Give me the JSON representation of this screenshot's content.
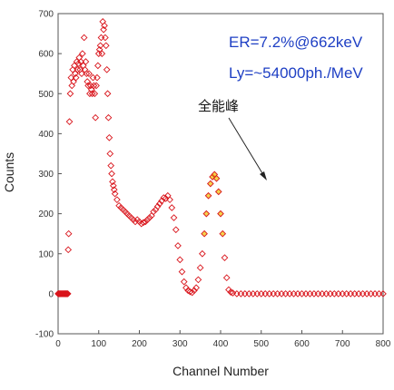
{
  "chart_data": {
    "type": "scatter",
    "title": "",
    "xlabel": "Channel Number",
    "ylabel": "Counts",
    "xlim": [
      0,
      800
    ],
    "ylim": [
      -100,
      700
    ],
    "x_ticks": [
      0,
      100,
      200,
      300,
      400,
      500,
      600,
      700,
      800
    ],
    "y_ticks": [
      -100,
      0,
      100,
      200,
      300,
      400,
      500,
      600,
      700
    ],
    "grid": false,
    "legend": "none",
    "annotations": {
      "er": "ER=7.2%@662keV",
      "ly": "Ly=~54000ph./MeV",
      "peak": "全能峰"
    },
    "colors": {
      "marker_edge": "#d9141b",
      "marker_fill": "#f0c000",
      "annotation_text": "#1e3fc4"
    },
    "series": [
      {
        "marker": "diamond-open",
        "points": [
          [
            0,
            0
          ],
          [
            2,
            0
          ],
          [
            4,
            0
          ],
          [
            6,
            0
          ],
          [
            8,
            0
          ],
          [
            10,
            0
          ],
          [
            12,
            0
          ],
          [
            14,
            0
          ],
          [
            16,
            0
          ],
          [
            18,
            0
          ],
          [
            20,
            0
          ],
          [
            22,
            0
          ],
          [
            24,
            0
          ],
          [
            25,
            110
          ],
          [
            26,
            150
          ],
          [
            28,
            430
          ],
          [
            30,
            500
          ],
          [
            32,
            540
          ],
          [
            34,
            520
          ],
          [
            36,
            560
          ],
          [
            38,
            530
          ],
          [
            40,
            570
          ],
          [
            42,
            550
          ],
          [
            44,
            540
          ],
          [
            46,
            580
          ],
          [
            48,
            560
          ],
          [
            50,
            575
          ],
          [
            52,
            590
          ],
          [
            54,
            560
          ],
          [
            56,
            580
          ],
          [
            58,
            550
          ],
          [
            60,
            600
          ],
          [
            62,
            570
          ],
          [
            64,
            640
          ],
          [
            66,
            560
          ],
          [
            68,
            580
          ],
          [
            70,
            550
          ],
          [
            72,
            530
          ],
          [
            74,
            520
          ],
          [
            76,
            550
          ],
          [
            78,
            500
          ],
          [
            80,
            520
          ],
          [
            82,
            510
          ],
          [
            84,
            500
          ],
          [
            86,
            540
          ],
          [
            88,
            520
          ],
          [
            90,
            500
          ],
          [
            92,
            440
          ],
          [
            94,
            520
          ],
          [
            96,
            540
          ],
          [
            98,
            570
          ],
          [
            100,
            600
          ],
          [
            102,
            610
          ],
          [
            104,
            620
          ],
          [
            106,
            640
          ],
          [
            108,
            600
          ],
          [
            110,
            680
          ],
          [
            112,
            660
          ],
          [
            114,
            670
          ],
          [
            116,
            640
          ],
          [
            118,
            620
          ],
          [
            120,
            560
          ],
          [
            122,
            500
          ],
          [
            124,
            440
          ],
          [
            126,
            390
          ],
          [
            128,
            350
          ],
          [
            130,
            320
          ],
          [
            132,
            300
          ],
          [
            134,
            280
          ],
          [
            136,
            270
          ],
          [
            138,
            260
          ],
          [
            140,
            250
          ],
          [
            145,
            235
          ],
          [
            150,
            220
          ],
          [
            155,
            215
          ],
          [
            160,
            210
          ],
          [
            165,
            205
          ],
          [
            170,
            200
          ],
          [
            175,
            195
          ],
          [
            180,
            190
          ],
          [
            185,
            185
          ],
          [
            190,
            180
          ],
          [
            195,
            185
          ],
          [
            200,
            180
          ],
          [
            205,
            175
          ],
          [
            210,
            178
          ],
          [
            215,
            180
          ],
          [
            220,
            185
          ],
          [
            225,
            190
          ],
          [
            230,
            195
          ],
          [
            235,
            205
          ],
          [
            240,
            210
          ],
          [
            245,
            218
          ],
          [
            250,
            225
          ],
          [
            255,
            232
          ],
          [
            260,
            240
          ],
          [
            265,
            238
          ],
          [
            270,
            245
          ],
          [
            275,
            235
          ],
          [
            280,
            215
          ],
          [
            285,
            190
          ],
          [
            290,
            160
          ],
          [
            295,
            120
          ],
          [
            300,
            85
          ],
          [
            305,
            55
          ],
          [
            310,
            30
          ],
          [
            315,
            15
          ],
          [
            320,
            8
          ],
          [
            325,
            5
          ],
          [
            330,
            3
          ],
          [
            335,
            8
          ],
          [
            340,
            15
          ],
          [
            345,
            35
          ],
          [
            350,
            65
          ],
          [
            355,
            100
          ],
          [
            360,
            150
          ],
          [
            365,
            200
          ],
          [
            370,
            245
          ],
          [
            375,
            275
          ],
          [
            380,
            292
          ],
          [
            385,
            298
          ],
          [
            390,
            288
          ],
          [
            395,
            255
          ],
          [
            400,
            200
          ],
          [
            405,
            150
          ],
          [
            410,
            90
          ],
          [
            415,
            40
          ],
          [
            420,
            10
          ],
          [
            425,
            4
          ],
          [
            430,
            2
          ],
          [
            440,
            0
          ],
          [
            450,
            0
          ],
          [
            460,
            0
          ],
          [
            470,
            0
          ],
          [
            480,
            0
          ],
          [
            490,
            0
          ],
          [
            500,
            0
          ],
          [
            510,
            0
          ],
          [
            520,
            0
          ],
          [
            530,
            0
          ],
          [
            540,
            0
          ],
          [
            550,
            0
          ],
          [
            560,
            0
          ],
          [
            570,
            0
          ],
          [
            580,
            0
          ],
          [
            590,
            0
          ],
          [
            600,
            0
          ],
          [
            610,
            0
          ],
          [
            620,
            0
          ],
          [
            630,
            0
          ],
          [
            640,
            0
          ],
          [
            650,
            0
          ],
          [
            660,
            0
          ],
          [
            670,
            0
          ],
          [
            680,
            0
          ],
          [
            690,
            0
          ],
          [
            700,
            0
          ],
          [
            710,
            0
          ],
          [
            720,
            0
          ],
          [
            730,
            0
          ],
          [
            740,
            0
          ],
          [
            750,
            0
          ],
          [
            760,
            0
          ],
          [
            770,
            0
          ],
          [
            780,
            0
          ],
          [
            790,
            0
          ],
          [
            800,
            0
          ]
        ]
      }
    ]
  }
}
